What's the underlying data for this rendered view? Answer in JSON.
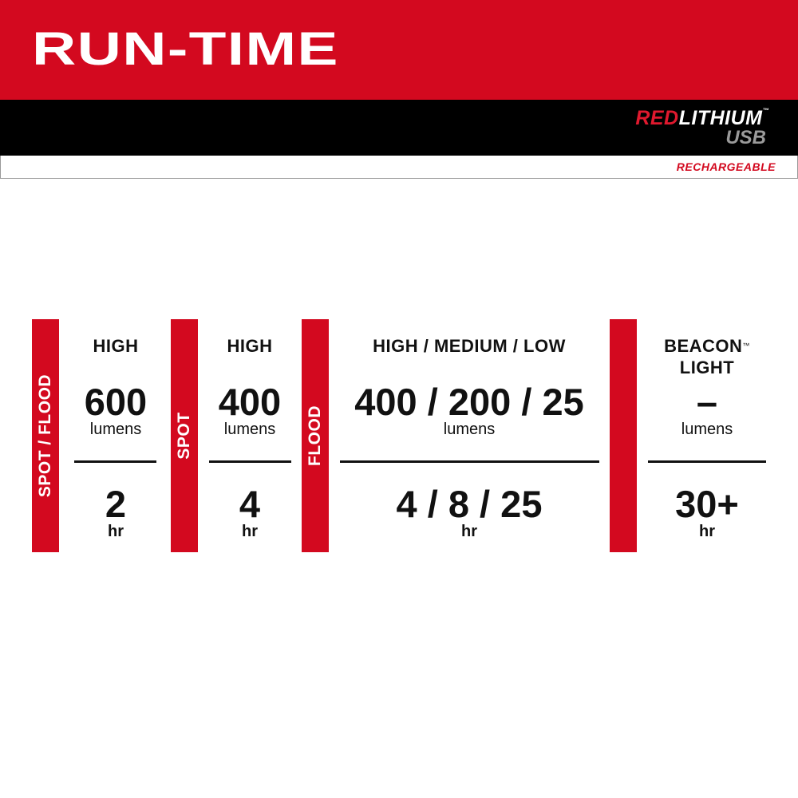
{
  "header": {
    "title": "RUN-TIME",
    "logo": {
      "red": "RED",
      "white": "LITHIUM",
      "tm": "™",
      "sub": "USB"
    },
    "tagline": "RECHARGEABLE"
  },
  "colors": {
    "brand_red": "#d3091f",
    "black": "#000000"
  },
  "groups": [
    {
      "label": "SPOT / FLOOD",
      "modes": "HIGH",
      "lumens": "600",
      "lumens_unit": "lumens",
      "runtime": "2",
      "runtime_unit": "hr"
    },
    {
      "label": "SPOT",
      "modes": "HIGH",
      "lumens": "400",
      "lumens_unit": "lumens",
      "runtime": "4",
      "runtime_unit": "hr"
    },
    {
      "label": "FLOOD",
      "modes": "HIGH / MEDIUM / LOW",
      "lumens": "400 / 200 / 25",
      "lumens_unit": "lumens",
      "runtime": "4 / 8 / 25",
      "runtime_unit": "hr"
    },
    {
      "label": "",
      "modes": "BEACON",
      "modes_tm": "™",
      "modes_line2": "LIGHT",
      "lumens": "–",
      "lumens_unit": "lumens",
      "runtime": "30+",
      "runtime_unit": "hr"
    }
  ]
}
